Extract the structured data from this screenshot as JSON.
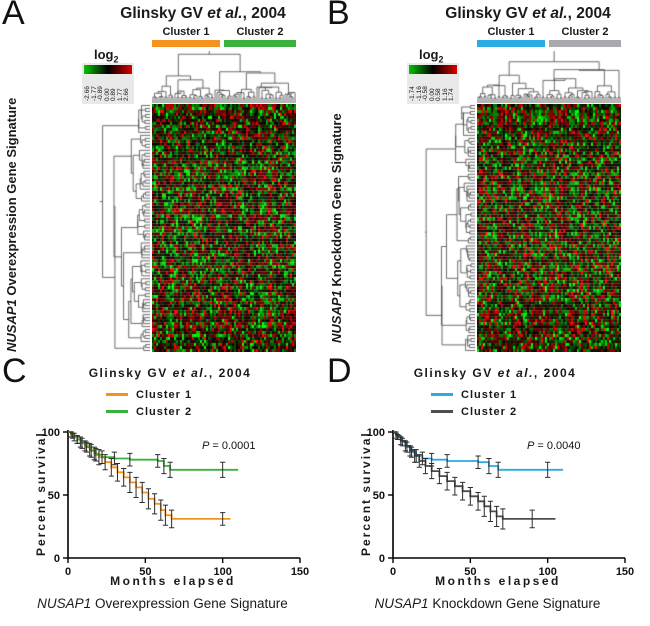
{
  "panels": {
    "a": {
      "letter": "A",
      "title": {
        "prefix": "Glinsky GV ",
        "italic": "et al.",
        "suffix": ", 2004"
      },
      "scale_legend": {
        "label": "log",
        "sub": "2",
        "ticks": [
          "-2.66",
          "-1.77",
          "-0.89",
          "0.00",
          "0.89",
          "1.77",
          "2.66"
        ],
        "gradient": [
          "#00c400",
          "#000000",
          "#dd0000"
        ]
      },
      "clusters": [
        {
          "label": "Cluster 1",
          "color": "#F6921E"
        },
        {
          "label": "Cluster 2",
          "color": "#3BB03C"
        }
      ],
      "y_label": {
        "italic": "NUSAP1",
        "rest": " Overexpression Gene Signature"
      }
    },
    "b": {
      "letter": "B",
      "title": {
        "prefix": "Glinsky GV ",
        "italic": "et al.",
        "suffix": ", 2004"
      },
      "scale_legend": {
        "label": "log",
        "sub": "2",
        "ticks": [
          "-1.74",
          "-1.16",
          "-0.58",
          "0.00",
          "0.58",
          "1.16",
          "1.74"
        ],
        "gradient": [
          "#00c400",
          "#000000",
          "#dd0000"
        ]
      },
      "clusters": [
        {
          "label": "Cluster 1",
          "color": "#2AACE3"
        },
        {
          "label": "Cluster 2",
          "color": "#A7A9AC"
        }
      ],
      "y_label": {
        "italic": "NUSAP1",
        "rest": " Knockdown Gene Signature"
      }
    },
    "c": {
      "letter": "C",
      "title": {
        "prefix": "Glinsky GV ",
        "italic": "et al.",
        "suffix": ", 2004"
      },
      "legend": [
        {
          "label": "Cluster 1",
          "color": "#F6921E"
        },
        {
          "label": "Cluster 2",
          "color": "#3BB03C"
        }
      ],
      "p_value": {
        "label": "P",
        "text": " = 0.0001"
      },
      "x_label": "Months elapsed",
      "y_label": "Percent survival",
      "caption": {
        "italic": "NUSAP1",
        "rest": " Overexpression Gene Signature"
      },
      "chart_id": "survival_c"
    },
    "d": {
      "letter": "D",
      "title": {
        "prefix": "Glinsky GV ",
        "italic": "et al.",
        "suffix": ", 2004"
      },
      "legend": [
        {
          "label": "Cluster 1",
          "color": "#2AACE3"
        },
        {
          "label": "Cluster 2",
          "color": "#4D4D4D"
        }
      ],
      "p_value": {
        "label": "P",
        "text": " = 0.0040"
      },
      "x_label": "Months elapsed",
      "y_label": "Percent survival",
      "caption": {
        "italic": "NUSAP1",
        "rest": " Knockdown Gene Signature"
      },
      "chart_id": "survival_d"
    }
  },
  "chart_data": [
    {
      "id": "heatmap_a",
      "type": "heatmap",
      "title": "Glinsky GV et al., 2004",
      "label": "NUSAP1 Overexpression Gene Signature",
      "rows": 83,
      "cols": 72,
      "seed": 7,
      "color_scale": {
        "scale": "log2",
        "ticks": [
          -2.66,
          -1.77,
          -0.89,
          0.0,
          0.89,
          1.77,
          2.66
        ],
        "low_color": "#00c400",
        "mid_color": "#000000",
        "high_color": "#dd0000"
      },
      "sample_groups": [
        {
          "name": "Cluster 1",
          "color": "#F6921E"
        },
        {
          "name": "Cluster 2",
          "color": "#3BB03C"
        }
      ]
    },
    {
      "id": "heatmap_b",
      "type": "heatmap",
      "title": "Glinsky GV et al., 2004",
      "label": "NUSAP1 Knockdown Gene Signature",
      "rows": 83,
      "cols": 72,
      "seed": 13,
      "color_scale": {
        "scale": "log2",
        "ticks": [
          -1.74,
          -1.16,
          -0.58,
          0.0,
          0.58,
          1.16,
          1.74
        ],
        "low_color": "#00c400",
        "mid_color": "#000000",
        "high_color": "#dd0000"
      },
      "sample_groups": [
        {
          "name": "Cluster 1",
          "color": "#2AACE3"
        },
        {
          "name": "Cluster 2",
          "color": "#A7A9AC"
        }
      ]
    },
    {
      "id": "survival_c",
      "type": "line",
      "subtype": "kaplan-meier",
      "title": "Glinsky GV et al., 2004",
      "xlabel": "Months elapsed",
      "ylabel": "Percent survival",
      "xlim": [
        0,
        150
      ],
      "ylim": [
        0,
        100
      ],
      "xticks": [
        0,
        50,
        100,
        150
      ],
      "yticks": [
        0,
        50,
        100
      ],
      "annotation": "P = 0.0001",
      "series": [
        {
          "name": "Cluster 1",
          "color": "#F6921E",
          "points": [
            [
              0,
              100,
              0
            ],
            [
              2,
              98,
              2
            ],
            [
              4,
              96,
              3
            ],
            [
              6,
              94,
              3
            ],
            [
              8,
              92,
              4
            ],
            [
              11,
              89,
              4
            ],
            [
              14,
              86,
              5
            ],
            [
              17,
              83,
              5
            ],
            [
              20,
              80,
              6
            ],
            [
              24,
              76,
              6
            ],
            [
              28,
              72,
              7
            ],
            [
              32,
              68,
              7
            ],
            [
              36,
              64,
              7
            ],
            [
              40,
              60,
              8
            ],
            [
              44,
              56,
              8
            ],
            [
              48,
              52,
              8
            ],
            [
              52,
              47,
              8
            ],
            [
              56,
              43,
              8
            ],
            [
              60,
              38,
              8
            ],
            [
              63,
              34,
              8
            ],
            [
              67,
              31,
              7
            ],
            [
              100,
              31,
              5
            ],
            [
              105,
              31,
              0
            ]
          ]
        },
        {
          "name": "Cluster 2",
          "color": "#3BB03C",
          "points": [
            [
              0,
              100,
              0
            ],
            [
              3,
              97,
              2
            ],
            [
              6,
              94,
              3
            ],
            [
              9,
              91,
              4
            ],
            [
              12,
              88,
              4
            ],
            [
              15,
              85,
              5
            ],
            [
              18,
              82,
              5
            ],
            [
              22,
              80,
              5
            ],
            [
              30,
              79,
              5
            ],
            [
              40,
              78,
              5
            ],
            [
              58,
              77,
              5
            ],
            [
              62,
              73,
              6
            ],
            [
              66,
              70,
              6
            ],
            [
              100,
              70,
              6
            ],
            [
              110,
              70,
              0
            ]
          ]
        }
      ]
    },
    {
      "id": "survival_d",
      "type": "line",
      "subtype": "kaplan-meier",
      "title": "Glinsky GV et al., 2004",
      "xlabel": "Months elapsed",
      "ylabel": "Percent survival",
      "xlim": [
        0,
        150
      ],
      "ylim": [
        0,
        100
      ],
      "xticks": [
        0,
        50,
        100,
        150
      ],
      "yticks": [
        0,
        50,
        100
      ],
      "annotation": "P = 0.0040",
      "series": [
        {
          "name": "Cluster 1",
          "color": "#2AACE3",
          "points": [
            [
              0,
              100,
              0
            ],
            [
              3,
              96,
              2
            ],
            [
              6,
              92,
              3
            ],
            [
              9,
              88,
              4
            ],
            [
              12,
              84,
              4
            ],
            [
              15,
              81,
              5
            ],
            [
              19,
              79,
              5
            ],
            [
              25,
              78,
              5
            ],
            [
              35,
              77,
              5
            ],
            [
              55,
              76,
              5
            ],
            [
              62,
              73,
              6
            ],
            [
              68,
              70,
              6
            ],
            [
              100,
              70,
              6
            ],
            [
              110,
              70,
              0
            ]
          ]
        },
        {
          "name": "Cluster 2",
          "color": "#4D4D4D",
          "points": [
            [
              0,
              100,
              0
            ],
            [
              2,
              97,
              2
            ],
            [
              5,
              93,
              3
            ],
            [
              8,
              89,
              4
            ],
            [
              11,
              85,
              4
            ],
            [
              14,
              81,
              5
            ],
            [
              17,
              77,
              5
            ],
            [
              21,
              73,
              6
            ],
            [
              25,
              69,
              6
            ],
            [
              30,
              65,
              6
            ],
            [
              35,
              61,
              7
            ],
            [
              40,
              57,
              7
            ],
            [
              45,
              53,
              7
            ],
            [
              50,
              49,
              7
            ],
            [
              55,
              45,
              7
            ],
            [
              59,
              41,
              8
            ],
            [
              63,
              37,
              8
            ],
            [
              67,
              33,
              8
            ],
            [
              71,
              31,
              8
            ],
            [
              90,
              31,
              7
            ],
            [
              105,
              31,
              0
            ]
          ]
        }
      ]
    }
  ]
}
